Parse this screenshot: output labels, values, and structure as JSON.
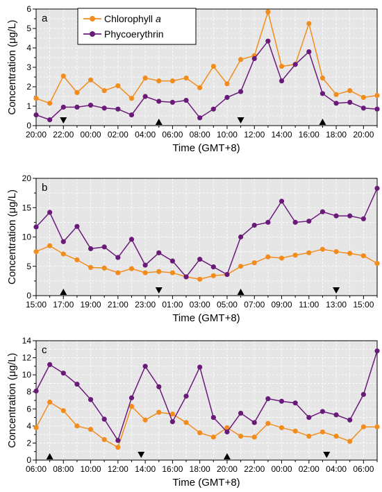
{
  "colors": {
    "chlorophyll": "#F28C1C",
    "phycoerythrin": "#6A1B7A",
    "plot_bg": "#E6E6E6",
    "grid": "#FFFFFF"
  },
  "legend": {
    "chlorophyll_label": "Chlorophyll",
    "chlorophyll_italic": "a",
    "phycoerythrin_label": "Phycoerythrin",
    "placement": "top-left of panel a"
  },
  "chart_data": [
    {
      "type": "line",
      "panel": "a",
      "xlabel": "Time (GMT+8)",
      "ylabel": "Concentration (μg/L)",
      "x_tick_labels": [
        "20:00",
        "22:00",
        "00:00",
        "02:00",
        "04:00",
        "06:00",
        "08:00",
        "10:00",
        "12:00",
        "14:00",
        "16:00",
        "18:00",
        "20:00"
      ],
      "ylim": [
        0,
        6
      ],
      "y_ticks": [
        0,
        1,
        2,
        3,
        4,
        5,
        6
      ],
      "grid": true,
      "series": [
        {
          "name": "Chlorophyll a",
          "color_key": "chlorophyll",
          "values": [
            1.4,
            1.15,
            2.55,
            1.7,
            2.35,
            1.8,
            2.05,
            1.4,
            2.45,
            2.3,
            2.3,
            2.45,
            1.95,
            3.05,
            2.15,
            3.4,
            3.6,
            5.85,
            3.05,
            3.15,
            5.25,
            2.45,
            1.6,
            1.8,
            1.45,
            1.55
          ]
        },
        {
          "name": "Phycoerythrin",
          "color_key": "phycoerythrin",
          "values": [
            0.55,
            0.3,
            0.95,
            0.95,
            1.05,
            0.9,
            0.85,
            0.55,
            1.5,
            1.25,
            1.2,
            1.3,
            0.4,
            0.85,
            1.45,
            1.75,
            3.45,
            4.35,
            2.3,
            3.15,
            3.8,
            1.65,
            1.15,
            1.2,
            0.9,
            0.85
          ]
        }
      ],
      "tide_markers": [
        {
          "type": "low",
          "index": 2
        },
        {
          "type": "high",
          "index": 9
        },
        {
          "type": "low",
          "index": 15
        },
        {
          "type": "high",
          "index": 21
        }
      ]
    },
    {
      "type": "line",
      "panel": "b",
      "xlabel": "Time (GMT+8)",
      "ylabel": "Concentration (μg/L)",
      "x_tick_labels": [
        "15:00",
        "17:00",
        "19:00",
        "21:00",
        "23:00",
        "01:00",
        "03:00",
        "05:00",
        "07:00",
        "09:00",
        "11:00",
        "13:00",
        "15:00"
      ],
      "ylim": [
        0,
        20
      ],
      "y_ticks": [
        0,
        5,
        10,
        15,
        20
      ],
      "grid": true,
      "series": [
        {
          "name": "Chlorophyll a",
          "color_key": "chlorophyll",
          "values": [
            7.5,
            8.5,
            7.1,
            6.1,
            4.8,
            4.7,
            3.9,
            4.6,
            3.9,
            4.1,
            3.9,
            3.2,
            2.8,
            3.4,
            3.6,
            5.0,
            5.6,
            6.6,
            6.4,
            6.9,
            7.3,
            7.9,
            7.5,
            7.2,
            6.8,
            5.5
          ]
        },
        {
          "name": "Phycoerythrin",
          "color_key": "phycoerythrin",
          "values": [
            11.7,
            14.2,
            9.2,
            11.8,
            8.0,
            8.3,
            6.5,
            9.6,
            5.2,
            7.3,
            5.9,
            3.2,
            6.2,
            4.9,
            3.6,
            10.0,
            12.0,
            12.5,
            16.1,
            12.5,
            12.7,
            14.3,
            13.6,
            13.6,
            13.1,
            18.3
          ]
        }
      ],
      "tide_markers": [
        {
          "type": "high",
          "index": 2
        },
        {
          "type": "low",
          "index": 9
        },
        {
          "type": "high",
          "index": 15
        },
        {
          "type": "low",
          "index": 22
        }
      ]
    },
    {
      "type": "line",
      "panel": "c",
      "xlabel": "Time (GMT+8)",
      "ylabel": "Concentration (μg/L)",
      "x_tick_labels": [
        "06:00",
        "08:00",
        "10:00",
        "12:00",
        "14:00",
        "16:00",
        "18:00",
        "20:00",
        "22:00",
        "00:00",
        "02:00",
        "04:00",
        "06:00"
      ],
      "ylim": [
        0,
        14
      ],
      "y_ticks": [
        0,
        2,
        4,
        6,
        8,
        10,
        12,
        14
      ],
      "grid": true,
      "series": [
        {
          "name": "Chlorophyll a",
          "color_key": "chlorophyll",
          "values": [
            3.8,
            6.8,
            5.8,
            4.0,
            3.6,
            2.4,
            1.5,
            6.3,
            4.7,
            5.6,
            5.4,
            4.4,
            3.2,
            2.7,
            3.8,
            2.8,
            2.7,
            4.3,
            3.8,
            3.4,
            2.8,
            3.3,
            2.8,
            2.2,
            3.9,
            3.9
          ]
        },
        {
          "name": "Phycoerythrin",
          "color_key": "phycoerythrin",
          "values": [
            8.1,
            11.2,
            10.2,
            8.9,
            7.1,
            4.8,
            2.3,
            7.3,
            11.0,
            8.6,
            4.5,
            7.5,
            10.9,
            5.0,
            3.3,
            5.5,
            4.4,
            7.2,
            6.9,
            6.7,
            5.0,
            5.7,
            5.3,
            4.7,
            7.7,
            12.8
          ]
        }
      ],
      "tide_markers": [
        {
          "type": "high",
          "index": 1
        },
        {
          "type": "low",
          "index": 7.7
        },
        {
          "type": "high",
          "index": 14
        },
        {
          "type": "low",
          "index": 21.3
        }
      ]
    }
  ]
}
